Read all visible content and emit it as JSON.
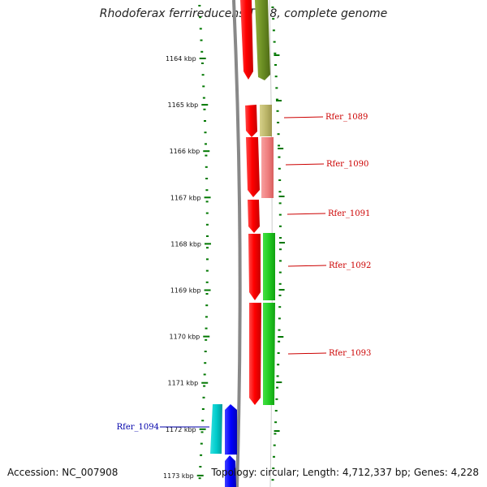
{
  "title": "Rhodoferax ferrireducens T118, complete genome",
  "accession": "Accession: NC_007908",
  "topology": "Topology: circular; Length: 4,712,337 bp; Genes: 4,228",
  "ruler": {
    "unit": "kbp",
    "labels": [
      "1164 kbp",
      "1165 kbp",
      "1166 kbp",
      "1167 kbp",
      "1168 kbp",
      "1169 kbp",
      "1170 kbp",
      "1171 kbp",
      "1172 kbp",
      "1173 kbp"
    ]
  },
  "gene_labels": [
    {
      "name": "Rfer_1089",
      "color": "#cc0000"
    },
    {
      "name": "Rfer_1090",
      "color": "#cc0000"
    },
    {
      "name": "Rfer_1091",
      "color": "#cc0000"
    },
    {
      "name": "Rfer_1092",
      "color": "#cc0000"
    },
    {
      "name": "Rfer_1093",
      "color": "#cc0000"
    },
    {
      "name": "Rfer_1094",
      "color": "#0000aa"
    }
  ],
  "colors": {
    "tick": "#007700",
    "backbone": "#888888",
    "cds": "#ff0000",
    "olive": "#6b8e23",
    "khaki": "#bdb76b",
    "pink": "#f08080",
    "green": "#22cc22",
    "cyan": "#00cccc",
    "blue": "#0000ff"
  }
}
